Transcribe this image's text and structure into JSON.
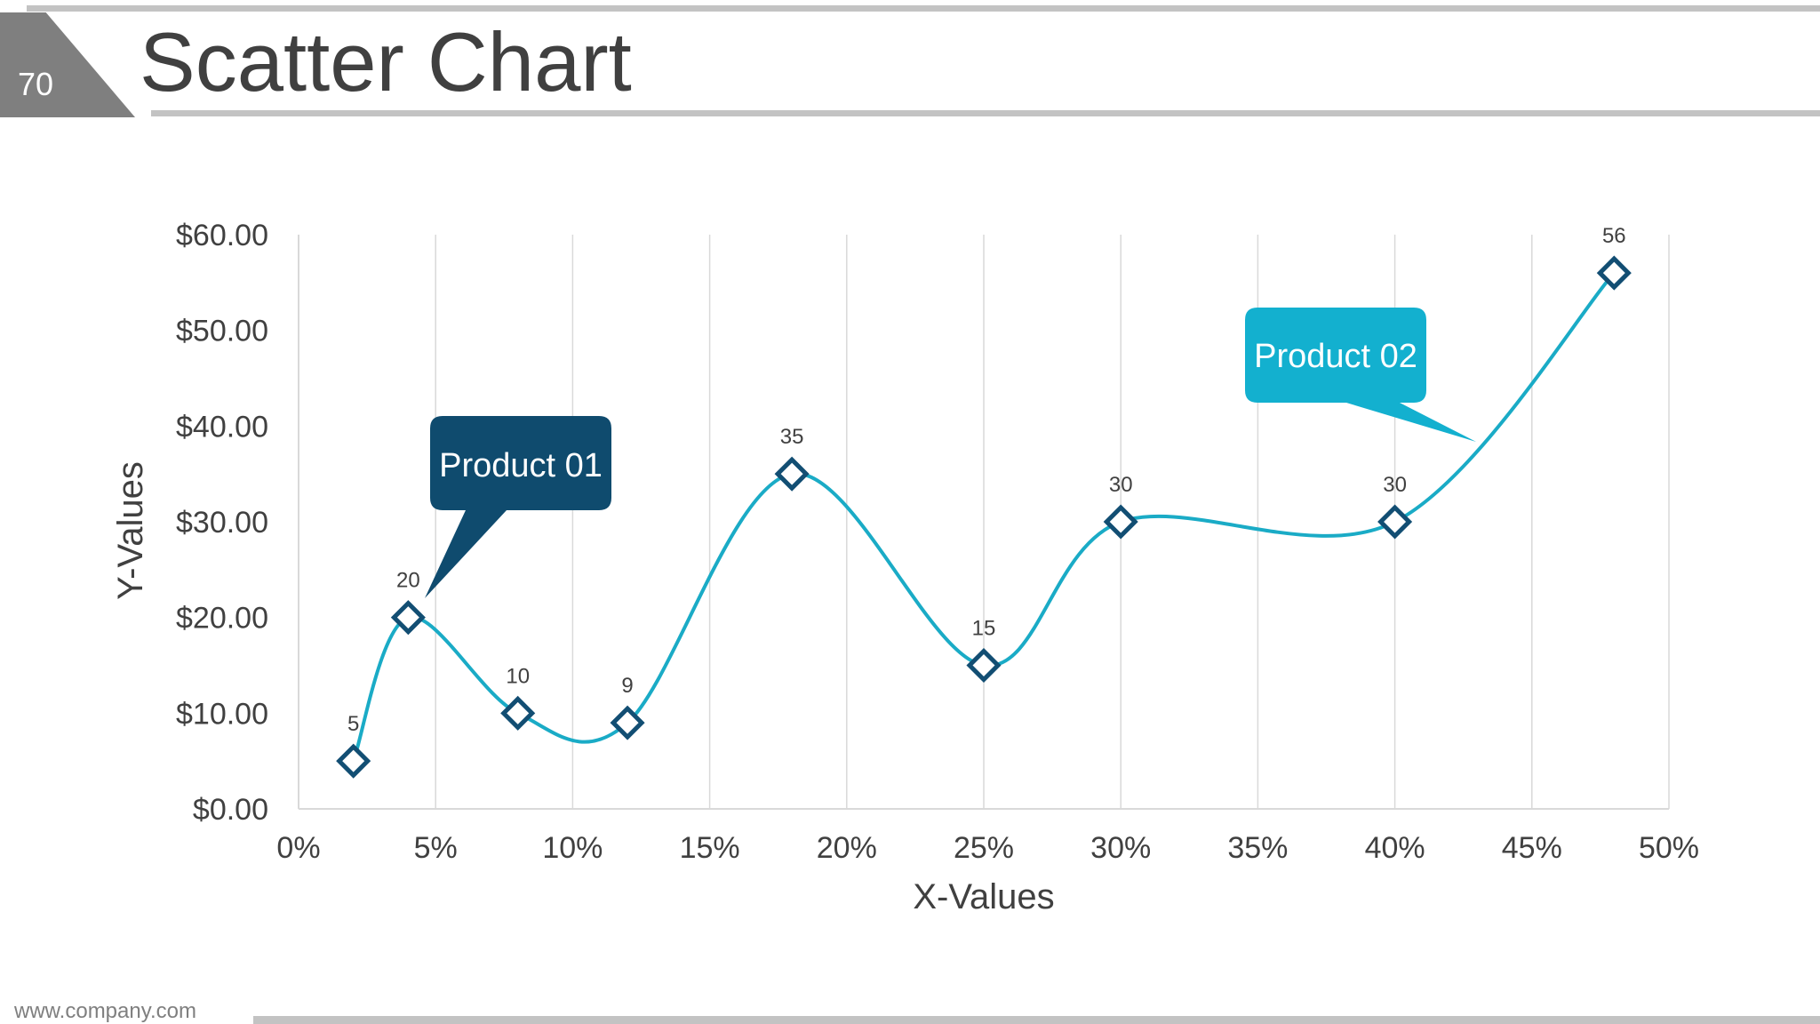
{
  "slide": {
    "number": "70",
    "title": "Scatter Chart",
    "footer_url": "www.company.com"
  },
  "colors": {
    "line": "#1aabc6",
    "marker": "#124e73",
    "callout1": "#0f4b6e",
    "callout2": "#13b0cf",
    "grid": "#d9d9d9"
  },
  "callouts": [
    {
      "text": "Product 01",
      "color": "#0f4b6e"
    },
    {
      "text": "Product 02",
      "color": "#13b0cf"
    }
  ],
  "chart_data": {
    "type": "scatter",
    "xlabel": "X-Values",
    "ylabel": "Y-Values",
    "xlim": [
      0,
      0.5
    ],
    "ylim": [
      0,
      60
    ],
    "x_ticks": [
      "0%",
      "5%",
      "10%",
      "15%",
      "20%",
      "25%",
      "30%",
      "35%",
      "40%",
      "45%",
      "50%"
    ],
    "y_ticks": [
      "$0.00",
      "$10.00",
      "$20.00",
      "$30.00",
      "$40.00",
      "$50.00",
      "$60.00"
    ],
    "grid": "vertical",
    "smooth_line": true,
    "points": [
      {
        "x": 0.02,
        "y": 5,
        "label": "5"
      },
      {
        "x": 0.04,
        "y": 20,
        "label": "20"
      },
      {
        "x": 0.08,
        "y": 10,
        "label": "10"
      },
      {
        "x": 0.12,
        "y": 9,
        "label": "9"
      },
      {
        "x": 0.18,
        "y": 35,
        "label": "35"
      },
      {
        "x": 0.25,
        "y": 15,
        "label": "15"
      },
      {
        "x": 0.3,
        "y": 30,
        "label": "30"
      },
      {
        "x": 0.4,
        "y": 30,
        "label": "30"
      },
      {
        "x": 0.48,
        "y": 56,
        "label": "56"
      }
    ]
  }
}
